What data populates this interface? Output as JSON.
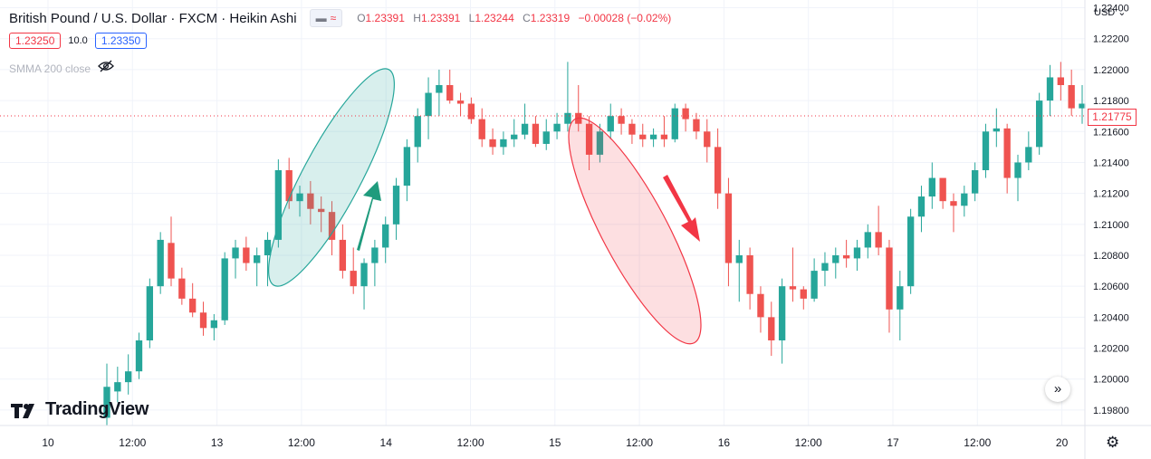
{
  "header": {
    "title": "British Pound / U.S. Dollar · FXCM · Heikin Ashi",
    "pill_wave": "≈",
    "ohlc": {
      "o_label": "O",
      "o": "1.23391",
      "h_label": "H",
      "h": "1.23391",
      "l_label": "L",
      "l": "1.23244",
      "c_label": "C",
      "c": "1.23319",
      "change": "−0.00028 (−0.02%)"
    }
  },
  "trade": {
    "sell": "1.23250",
    "spread": "10.0",
    "buy": "1.23350"
  },
  "indicator": {
    "label": "SMMA 200 close"
  },
  "currency_selector": "USD",
  "last_price_label": "1.21775",
  "logo_text": "TradingView",
  "colors": {
    "up": "#26a69a",
    "down": "#ef5350",
    "up_highlight": "#1f9b7d",
    "down_highlight": "#f23645",
    "grid": "#f0f3fa",
    "text": "#131722"
  },
  "chart_data": {
    "type": "candlestick",
    "style": "Heikin Ashi",
    "symbol": "GBPUSD",
    "y_axis": {
      "ticks": [
        "1.22400",
        "1.22200",
        "1.22000",
        "1.21800",
        "1.21600",
        "1.21400",
        "1.21200",
        "1.21000",
        "1.20800",
        "1.20600",
        "1.20400",
        "1.20200",
        "1.20000",
        "1.19800"
      ],
      "ylim": [
        1.197,
        1.2245
      ]
    },
    "x_axis": {
      "ticks": [
        "10",
        "12:00",
        "13",
        "12:00",
        "14",
        "12:00",
        "15",
        "12:00",
        "16",
        "12:00",
        "17",
        "12:00",
        "20"
      ],
      "range_hours": [
        0,
        258.5
      ]
    },
    "candle_hours_step": 2,
    "candle_start_hour": 84,
    "candles_ohlc_relative": "each candle: [open, high, low, close]",
    "candles": [
      [
        1.1975,
        1.201,
        1.197,
        1.1995
      ],
      [
        1.1992,
        1.2008,
        1.1985,
        1.1998
      ],
      [
        1.1998,
        1.2016,
        1.199,
        1.2005
      ],
      [
        1.2005,
        1.203,
        1.2,
        1.2025
      ],
      [
        1.2025,
        1.2065,
        1.202,
        1.206
      ],
      [
        1.206,
        1.2095,
        1.2055,
        1.209
      ],
      [
        1.2088,
        1.2105,
        1.206,
        1.2065
      ],
      [
        1.2065,
        1.2072,
        1.2048,
        1.2052
      ],
      [
        1.2052,
        1.2062,
        1.204,
        1.2043
      ],
      [
        1.2043,
        1.205,
        1.2028,
        1.2033
      ],
      [
        1.2033,
        1.2042,
        1.2025,
        1.2038
      ],
      [
        1.2038,
        1.2082,
        1.2035,
        1.2078
      ],
      [
        1.2078,
        1.209,
        1.2065,
        1.2085
      ],
      [
        1.2085,
        1.2092,
        1.207,
        1.2075
      ],
      [
        1.2075,
        1.2085,
        1.206,
        1.208
      ],
      [
        1.208,
        1.2095,
        1.206,
        1.209
      ],
      [
        1.209,
        1.2142,
        1.2085,
        1.2135
      ],
      [
        1.2135,
        1.2143,
        1.211,
        1.2115
      ],
      [
        1.2115,
        1.2125,
        1.2105,
        1.212
      ],
      [
        1.212,
        1.2128,
        1.21,
        1.211
      ],
      [
        1.211,
        1.2118,
        1.2095,
        1.2108
      ],
      [
        1.2108,
        1.2115,
        1.208,
        1.209
      ],
      [
        1.209,
        1.21,
        1.2065,
        1.207
      ],
      [
        1.207,
        1.2085,
        1.2055,
        1.206
      ],
      [
        1.206,
        1.2078,
        1.2045,
        1.2075
      ],
      [
        1.2075,
        1.209,
        1.206,
        1.2085
      ],
      [
        1.2085,
        1.2105,
        1.2075,
        1.21
      ],
      [
        1.21,
        1.213,
        1.209,
        1.2125
      ],
      [
        1.2125,
        1.2155,
        1.2115,
        1.215
      ],
      [
        1.215,
        1.2175,
        1.214,
        1.217
      ],
      [
        1.217,
        1.2195,
        1.2155,
        1.2185
      ],
      [
        1.2185,
        1.22,
        1.217,
        1.219
      ],
      [
        1.219,
        1.22,
        1.2178,
        1.218
      ],
      [
        1.218,
        1.2185,
        1.217,
        1.2178
      ],
      [
        1.2178,
        1.2182,
        1.2165,
        1.2168
      ],
      [
        1.2168,
        1.2175,
        1.215,
        1.2155
      ],
      [
        1.2155,
        1.2162,
        1.2145,
        1.215
      ],
      [
        1.215,
        1.216,
        1.2145,
        1.2155
      ],
      [
        1.2155,
        1.2168,
        1.215,
        1.2158
      ],
      [
        1.2158,
        1.2178,
        1.2155,
        1.2165
      ],
      [
        1.2165,
        1.217,
        1.215,
        1.2152
      ],
      [
        1.2152,
        1.2168,
        1.2148,
        1.216
      ],
      [
        1.216,
        1.2172,
        1.2155,
        1.2165
      ],
      [
        1.2165,
        1.2205,
        1.216,
        1.2172
      ],
      [
        1.2172,
        1.219,
        1.216,
        1.2165
      ],
      [
        1.2165,
        1.217,
        1.2135,
        1.2145
      ],
      [
        1.2145,
        1.2165,
        1.214,
        1.216
      ],
      [
        1.216,
        1.2178,
        1.2155,
        1.217
      ],
      [
        1.217,
        1.2175,
        1.2158,
        1.2165
      ],
      [
        1.2165,
        1.2168,
        1.2152,
        1.2158
      ],
      [
        1.2158,
        1.2165,
        1.215,
        1.2155
      ],
      [
        1.2155,
        1.2162,
        1.215,
        1.2158
      ],
      [
        1.2158,
        1.217,
        1.215,
        1.2155
      ],
      [
        1.2155,
        1.2178,
        1.2153,
        1.2175
      ],
      [
        1.2175,
        1.2178,
        1.216,
        1.2168
      ],
      [
        1.2168,
        1.2172,
        1.2155,
        1.216
      ],
      [
        1.216,
        1.2168,
        1.214,
        1.215
      ],
      [
        1.215,
        1.2162,
        1.211,
        1.212
      ],
      [
        1.212,
        1.213,
        1.206,
        1.2075
      ],
      [
        1.2075,
        1.209,
        1.205,
        1.208
      ],
      [
        1.208,
        1.2085,
        1.2045,
        1.2055
      ],
      [
        1.2055,
        1.206,
        1.203,
        1.204
      ],
      [
        1.204,
        1.205,
        1.2015,
        1.2025
      ],
      [
        1.2025,
        1.2065,
        1.201,
        1.206
      ],
      [
        1.206,
        1.2085,
        1.205,
        1.2058
      ],
      [
        1.2058,
        1.206,
        1.2045,
        1.2052
      ],
      [
        1.2052,
        1.2078,
        1.205,
        1.207
      ],
      [
        1.207,
        1.2082,
        1.206,
        1.2075
      ],
      [
        1.2075,
        1.2085,
        1.2065,
        1.208
      ],
      [
        1.208,
        1.209,
        1.2072,
        1.2078
      ],
      [
        1.2078,
        1.209,
        1.207,
        1.2085
      ],
      [
        1.2085,
        1.21,
        1.2078,
        1.2095
      ],
      [
        1.2095,
        1.2112,
        1.208,
        1.2085
      ],
      [
        1.2085,
        1.209,
        1.203,
        1.2045
      ],
      [
        1.2045,
        1.207,
        1.2025,
        1.206
      ],
      [
        1.206,
        1.211,
        1.2055,
        1.2105
      ],
      [
        1.2105,
        1.2125,
        1.2095,
        1.2118
      ],
      [
        1.2118,
        1.214,
        1.211,
        1.213
      ],
      [
        1.213,
        1.2128,
        1.211,
        1.2115
      ],
      [
        1.2115,
        1.212,
        1.2095,
        1.2112
      ],
      [
        1.2112,
        1.2125,
        1.2105,
        1.212
      ],
      [
        1.212,
        1.214,
        1.2115,
        1.2135
      ],
      [
        1.2135,
        1.2165,
        1.213,
        1.216
      ],
      [
        1.216,
        1.2175,
        1.215,
        1.2162
      ],
      [
        1.2162,
        1.2165,
        1.212,
        1.213
      ],
      [
        1.213,
        1.2145,
        1.2115,
        1.214
      ],
      [
        1.214,
        1.216,
        1.2135,
        1.215
      ],
      [
        1.215,
        1.2185,
        1.2145,
        1.218
      ],
      [
        1.218,
        1.2203,
        1.217,
        1.2195
      ],
      [
        1.2195,
        1.2205,
        1.218,
        1.219
      ],
      [
        1.219,
        1.22,
        1.217,
        1.2175
      ],
      [
        1.2175,
        1.219,
        1.2165,
        1.2178
      ]
    ],
    "annotations": [
      {
        "type": "ellipse",
        "color": "green",
        "label": ""
      },
      {
        "type": "arrow",
        "direction": "up",
        "color": "green"
      },
      {
        "type": "ellipse",
        "color": "red",
        "label": ""
      },
      {
        "type": "arrow",
        "direction": "down",
        "color": "red"
      }
    ]
  }
}
